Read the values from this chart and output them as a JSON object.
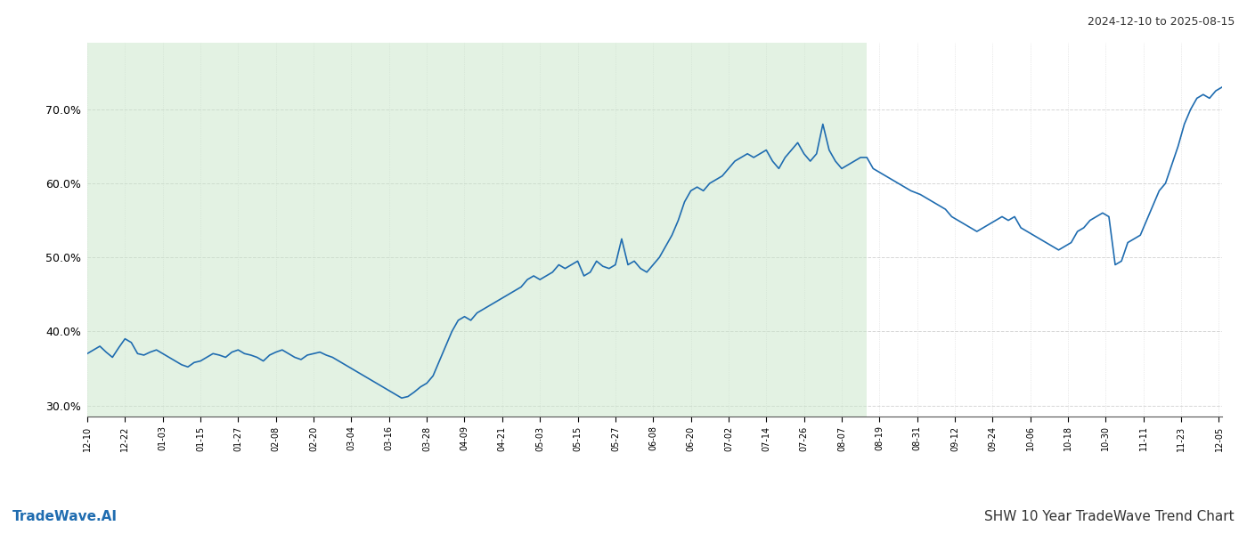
{
  "title_top_right": "2024-12-10 to 2025-08-15",
  "title_bottom_right": "SHW 10 Year TradeWave Trend Chart",
  "title_bottom_left": "TradeWave.AI",
  "line_color": "#1f6cb0",
  "shaded_color": "#c8e6c9",
  "shaded_alpha": 0.5,
  "background_color": "#ffffff",
  "grid_color": "#cccccc",
  "ylim": [
    28.5,
    79
  ],
  "yticks": [
    30.0,
    40.0,
    50.0,
    60.0,
    70.0
  ],
  "shade_start": "2024-12-10",
  "shade_end": "2025-08-15",
  "dates": [
    "2024-12-10",
    "2024-12-12",
    "2024-12-14",
    "2024-12-16",
    "2024-12-18",
    "2024-12-20",
    "2024-12-22",
    "2024-12-24",
    "2024-12-26",
    "2024-12-28",
    "2024-12-30",
    "2025-01-01",
    "2025-01-03",
    "2025-01-05",
    "2025-01-07",
    "2025-01-09",
    "2025-01-11",
    "2025-01-13",
    "2025-01-15",
    "2025-01-17",
    "2025-01-19",
    "2025-01-21",
    "2025-01-23",
    "2025-01-25",
    "2025-01-27",
    "2025-01-29",
    "2025-01-31",
    "2025-02-02",
    "2025-02-04",
    "2025-02-06",
    "2025-02-08",
    "2025-02-10",
    "2025-02-12",
    "2025-02-14",
    "2025-02-16",
    "2025-02-18",
    "2025-02-20",
    "2025-02-22",
    "2025-02-24",
    "2025-02-26",
    "2025-02-28",
    "2025-03-02",
    "2025-03-04",
    "2025-03-06",
    "2025-03-08",
    "2025-03-10",
    "2025-03-12",
    "2025-03-14",
    "2025-03-16",
    "2025-03-18",
    "2025-03-20",
    "2025-03-22",
    "2025-03-24",
    "2025-03-26",
    "2025-03-28",
    "2025-03-30",
    "2025-04-01",
    "2025-04-03",
    "2025-04-05",
    "2025-04-07",
    "2025-04-09",
    "2025-04-11",
    "2025-04-13",
    "2025-04-15",
    "2025-04-17",
    "2025-04-19",
    "2025-04-21",
    "2025-04-23",
    "2025-04-25",
    "2025-04-27",
    "2025-04-29",
    "2025-05-01",
    "2025-05-03",
    "2025-05-05",
    "2025-05-07",
    "2025-05-09",
    "2025-05-11",
    "2025-05-13",
    "2025-05-15",
    "2025-05-17",
    "2025-05-19",
    "2025-05-21",
    "2025-05-23",
    "2025-05-25",
    "2025-05-27",
    "2025-05-29",
    "2025-05-31",
    "2025-06-02",
    "2025-06-04",
    "2025-06-06",
    "2025-06-08",
    "2025-06-10",
    "2025-06-12",
    "2025-06-14",
    "2025-06-16",
    "2025-06-18",
    "2025-06-20",
    "2025-06-22",
    "2025-06-24",
    "2025-06-26",
    "2025-06-28",
    "2025-06-30",
    "2025-07-02",
    "2025-07-04",
    "2025-07-06",
    "2025-07-08",
    "2025-07-10",
    "2025-07-12",
    "2025-07-14",
    "2025-07-16",
    "2025-07-18",
    "2025-07-20",
    "2025-07-22",
    "2025-07-24",
    "2025-07-26",
    "2025-07-28",
    "2025-07-30",
    "2025-08-01",
    "2025-08-03",
    "2025-08-05",
    "2025-08-07",
    "2025-08-09",
    "2025-08-11",
    "2025-08-13",
    "2025-08-15",
    "2025-08-17",
    "2025-08-19",
    "2025-08-21",
    "2025-08-23",
    "2025-08-25",
    "2025-08-27",
    "2025-08-29",
    "2025-09-01",
    "2025-09-03",
    "2025-09-05",
    "2025-09-07",
    "2025-09-09",
    "2025-09-11",
    "2025-09-13",
    "2025-09-15",
    "2025-09-17",
    "2025-09-19",
    "2025-09-21",
    "2025-09-23",
    "2025-09-25",
    "2025-09-27",
    "2025-09-29",
    "2025-10-01",
    "2025-10-03",
    "2025-10-05",
    "2025-10-07",
    "2025-10-09",
    "2025-10-11",
    "2025-10-13",
    "2025-10-15",
    "2025-10-17",
    "2025-10-19",
    "2025-10-21",
    "2025-10-23",
    "2025-10-25",
    "2025-10-27",
    "2025-10-29",
    "2025-10-31",
    "2025-11-02",
    "2025-11-04",
    "2025-11-06",
    "2025-11-08",
    "2025-11-10",
    "2025-11-12",
    "2025-11-14",
    "2025-11-16",
    "2025-11-18",
    "2025-11-20",
    "2025-11-22",
    "2025-11-24",
    "2025-11-26",
    "2025-11-28",
    "2025-11-30",
    "2025-12-02",
    "2025-12-04",
    "2025-12-06"
  ],
  "values": [
    37.0,
    37.5,
    38.0,
    37.2,
    36.5,
    37.8,
    39.0,
    38.5,
    37.0,
    36.8,
    37.2,
    37.5,
    37.0,
    36.5,
    36.0,
    35.5,
    35.2,
    35.8,
    36.0,
    36.5,
    37.0,
    36.8,
    36.5,
    37.2,
    37.5,
    37.0,
    36.8,
    36.5,
    36.0,
    36.8,
    37.2,
    37.5,
    37.0,
    36.5,
    36.2,
    36.8,
    37.0,
    37.2,
    36.8,
    36.5,
    36.0,
    35.5,
    35.0,
    34.5,
    34.0,
    33.5,
    33.0,
    32.5,
    32.0,
    31.5,
    31.0,
    31.2,
    31.8,
    32.5,
    33.0,
    34.0,
    36.0,
    38.0,
    40.0,
    41.5,
    42.0,
    41.5,
    42.5,
    43.0,
    43.5,
    44.0,
    44.5,
    45.0,
    45.5,
    46.0,
    47.0,
    47.5,
    47.0,
    47.5,
    48.0,
    49.0,
    48.5,
    49.0,
    49.5,
    47.5,
    48.0,
    49.5,
    48.8,
    48.5,
    49.0,
    52.5,
    49.0,
    49.5,
    48.5,
    48.0,
    49.0,
    50.0,
    51.5,
    53.0,
    55.0,
    57.5,
    59.0,
    59.5,
    59.0,
    60.0,
    60.5,
    61.0,
    62.0,
    63.0,
    63.5,
    64.0,
    63.5,
    64.0,
    64.5,
    63.0,
    62.0,
    63.5,
    64.5,
    65.5,
    64.0,
    63.0,
    64.0,
    68.0,
    64.5,
    63.0,
    62.0,
    62.5,
    63.0,
    63.5,
    63.5,
    62.0,
    61.5,
    61.0,
    60.5,
    60.0,
    59.5,
    59.0,
    58.5,
    58.0,
    57.5,
    57.0,
    56.5,
    55.5,
    55.0,
    54.5,
    54.0,
    53.5,
    54.0,
    54.5,
    55.0,
    55.5,
    55.0,
    55.5,
    54.0,
    53.5,
    53.0,
    52.5,
    52.0,
    51.5,
    51.0,
    51.5,
    52.0,
    53.5,
    54.0,
    55.0,
    55.5,
    56.0,
    55.5,
    49.0,
    49.5,
    52.0,
    52.5,
    53.0,
    55.0,
    57.0,
    59.0,
    60.0,
    62.5,
    65.0,
    68.0,
    70.0,
    71.5,
    72.0,
    71.5,
    72.5,
    73.0
  ],
  "xtick_dates": [
    "2024-12-10",
    "2024-12-22",
    "2025-01-03",
    "2025-01-15",
    "2025-01-27",
    "2025-02-08",
    "2025-02-20",
    "2025-03-04",
    "2025-03-16",
    "2025-03-28",
    "2025-04-09",
    "2025-04-21",
    "2025-05-03",
    "2025-05-15",
    "2025-05-27",
    "2025-06-08",
    "2025-06-20",
    "2025-07-02",
    "2025-07-14",
    "2025-07-26",
    "2025-08-07",
    "2025-08-19",
    "2025-08-31",
    "2025-09-12",
    "2025-09-24",
    "2025-10-06",
    "2025-10-18",
    "2025-10-30",
    "2025-11-11",
    "2025-11-23",
    "2025-12-05"
  ],
  "xtick_labels": [
    "12-10",
    "12-22",
    "01-03",
    "01-15",
    "01-27",
    "02-08",
    "02-20",
    "03-04",
    "03-16",
    "03-28",
    "04-09",
    "04-21",
    "05-03",
    "05-15",
    "05-27",
    "06-08",
    "06-20",
    "07-02",
    "07-14",
    "07-26",
    "08-07",
    "08-19",
    "08-31",
    "09-12",
    "09-24",
    "10-06",
    "10-18",
    "10-30",
    "11-11",
    "11-23",
    "12-05"
  ]
}
